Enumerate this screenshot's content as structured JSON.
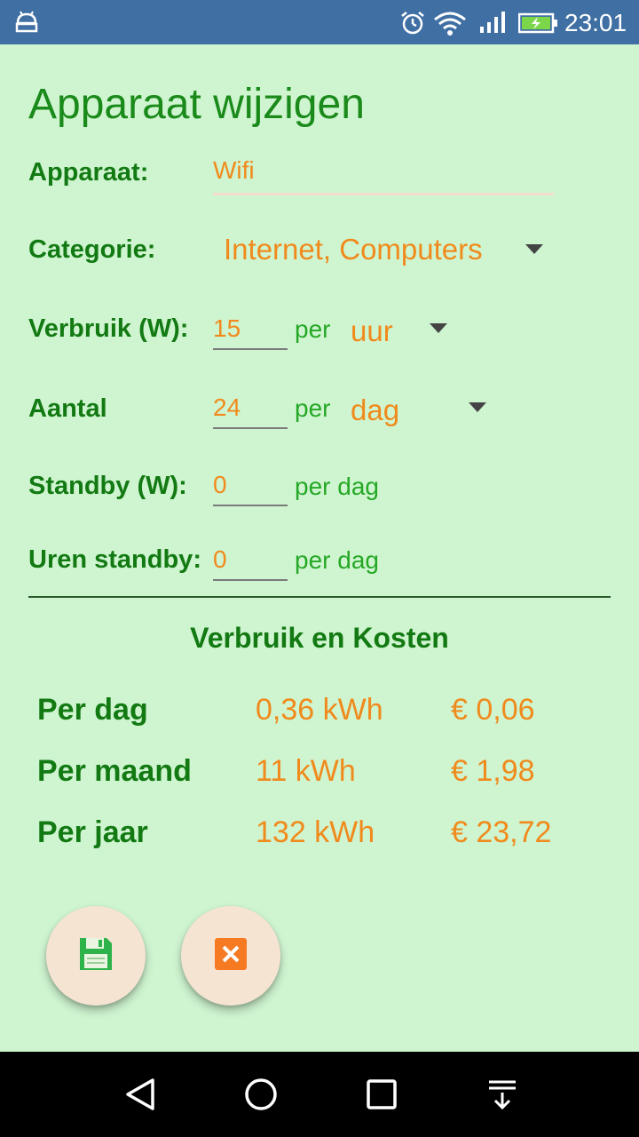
{
  "status_bar": {
    "time": "23:01",
    "icons": [
      "android-icon",
      "alarm-icon",
      "wifi-icon",
      "signal-icon",
      "battery-charging-icon"
    ]
  },
  "title": "Apparaat wijzigen",
  "form": {
    "device_label": "Apparaat:",
    "device_value": "Wifi",
    "category_label": "Categorie:",
    "category_value": "Internet, Computers",
    "usage_label": "Verbruik (W):",
    "usage_value": "15",
    "usage_per": "per",
    "usage_unit": "uur",
    "count_label": "Aantal",
    "count_value": "24",
    "count_per": "per",
    "count_unit": "dag",
    "standby_label": "Standby (W):",
    "standby_value": "0",
    "standby_per": "per dag",
    "standby_hours_label": "Uren standby:",
    "standby_hours_value": "0",
    "standby_hours_per": "per dag"
  },
  "summary": {
    "title": "Verbruik en Kosten",
    "rows": [
      {
        "label": "Per dag",
        "kwh": "0,36 kWh",
        "cost": "€ 0,06"
      },
      {
        "label": "Per maand",
        "kwh": "11 kWh",
        "cost": "€ 1,98"
      },
      {
        "label": "Per jaar",
        "kwh": "132 kWh",
        "cost": "€ 23,72"
      }
    ]
  },
  "colors": {
    "background": "#cff5d0",
    "status_bar": "#3f6fa3",
    "label_green": "#137a13",
    "accent_orange": "#f08a1c",
    "fab_background": "#f6e4d2"
  },
  "buttons": {
    "save_icon": "floppy-disk-icon",
    "cancel_icon": "close-box-icon"
  },
  "navigation": [
    "back-icon",
    "home-icon",
    "recents-icon",
    "notification-pull-icon"
  ]
}
